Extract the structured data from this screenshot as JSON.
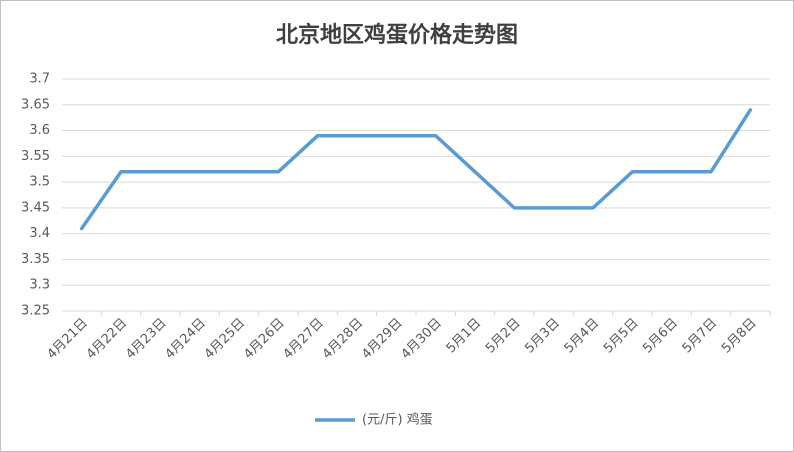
{
  "chart_data": {
    "type": "line",
    "title": "北京地区鸡蛋价格走势图",
    "categories": [
      "4月21日",
      "4月22日",
      "4月23日",
      "4月24日",
      "4月25日",
      "4月26日",
      "4月27日",
      "4月28日",
      "4月29日",
      "4月30日",
      "5月1日",
      "5月2日",
      "5月3日",
      "5月4日",
      "5月5日",
      "5月6日",
      "5月7日",
      "5月8日"
    ],
    "series": [
      {
        "name": "(元/斤) 鸡蛋",
        "color": "#5b9bd5",
        "values": [
          3.41,
          3.52,
          3.52,
          3.52,
          3.52,
          3.52,
          3.59,
          3.59,
          3.59,
          3.59,
          3.52,
          3.45,
          3.45,
          3.45,
          3.52,
          3.52,
          3.52,
          3.64
        ]
      }
    ],
    "ylim": [
      3.25,
      3.7
    ],
    "yticks": [
      3.25,
      3.3,
      3.35,
      3.4,
      3.45,
      3.5,
      3.55,
      3.6,
      3.65,
      3.7
    ],
    "grid": true
  }
}
